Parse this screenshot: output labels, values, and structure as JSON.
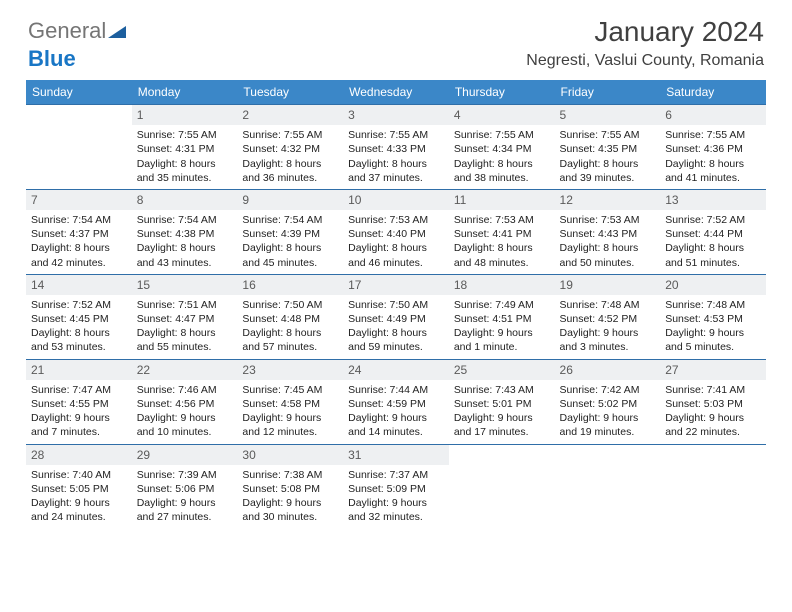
{
  "brand": {
    "part1": "General",
    "part2": "Blue",
    "color_gray": "#757575",
    "color_blue": "#1976c5",
    "triangle_color": "#1c5f9e"
  },
  "header": {
    "month_title": "January 2024",
    "location": "Negresti, Vaslui County, Romania"
  },
  "style": {
    "header_bg": "#3b87c8",
    "header_text": "#ffffff",
    "daynum_bg": "#eef0f2",
    "daynum_text": "#5a5a5a",
    "row_border": "#2f6ea8",
    "body_text": "#222222",
    "page_bg": "#ffffff",
    "title_color": "#404040",
    "body_fontsize": 10.5,
    "daynum_fontsize": 12,
    "th_fontsize": 12,
    "title_fontsize": 28,
    "location_fontsize": 16
  },
  "weekdays": [
    "Sunday",
    "Monday",
    "Tuesday",
    "Wednesday",
    "Thursday",
    "Friday",
    "Saturday"
  ],
  "weeks": [
    [
      null,
      {
        "num": "1",
        "sunrise": "Sunrise: 7:55 AM",
        "sunset": "Sunset: 4:31 PM",
        "day1": "Daylight: 8 hours",
        "day2": "and 35 minutes."
      },
      {
        "num": "2",
        "sunrise": "Sunrise: 7:55 AM",
        "sunset": "Sunset: 4:32 PM",
        "day1": "Daylight: 8 hours",
        "day2": "and 36 minutes."
      },
      {
        "num": "3",
        "sunrise": "Sunrise: 7:55 AM",
        "sunset": "Sunset: 4:33 PM",
        "day1": "Daylight: 8 hours",
        "day2": "and 37 minutes."
      },
      {
        "num": "4",
        "sunrise": "Sunrise: 7:55 AM",
        "sunset": "Sunset: 4:34 PM",
        "day1": "Daylight: 8 hours",
        "day2": "and 38 minutes."
      },
      {
        "num": "5",
        "sunrise": "Sunrise: 7:55 AM",
        "sunset": "Sunset: 4:35 PM",
        "day1": "Daylight: 8 hours",
        "day2": "and 39 minutes."
      },
      {
        "num": "6",
        "sunrise": "Sunrise: 7:55 AM",
        "sunset": "Sunset: 4:36 PM",
        "day1": "Daylight: 8 hours",
        "day2": "and 41 minutes."
      }
    ],
    [
      {
        "num": "7",
        "sunrise": "Sunrise: 7:54 AM",
        "sunset": "Sunset: 4:37 PM",
        "day1": "Daylight: 8 hours",
        "day2": "and 42 minutes."
      },
      {
        "num": "8",
        "sunrise": "Sunrise: 7:54 AM",
        "sunset": "Sunset: 4:38 PM",
        "day1": "Daylight: 8 hours",
        "day2": "and 43 minutes."
      },
      {
        "num": "9",
        "sunrise": "Sunrise: 7:54 AM",
        "sunset": "Sunset: 4:39 PM",
        "day1": "Daylight: 8 hours",
        "day2": "and 45 minutes."
      },
      {
        "num": "10",
        "sunrise": "Sunrise: 7:53 AM",
        "sunset": "Sunset: 4:40 PM",
        "day1": "Daylight: 8 hours",
        "day2": "and 46 minutes."
      },
      {
        "num": "11",
        "sunrise": "Sunrise: 7:53 AM",
        "sunset": "Sunset: 4:41 PM",
        "day1": "Daylight: 8 hours",
        "day2": "and 48 minutes."
      },
      {
        "num": "12",
        "sunrise": "Sunrise: 7:53 AM",
        "sunset": "Sunset: 4:43 PM",
        "day1": "Daylight: 8 hours",
        "day2": "and 50 minutes."
      },
      {
        "num": "13",
        "sunrise": "Sunrise: 7:52 AM",
        "sunset": "Sunset: 4:44 PM",
        "day1": "Daylight: 8 hours",
        "day2": "and 51 minutes."
      }
    ],
    [
      {
        "num": "14",
        "sunrise": "Sunrise: 7:52 AM",
        "sunset": "Sunset: 4:45 PM",
        "day1": "Daylight: 8 hours",
        "day2": "and 53 minutes."
      },
      {
        "num": "15",
        "sunrise": "Sunrise: 7:51 AM",
        "sunset": "Sunset: 4:47 PM",
        "day1": "Daylight: 8 hours",
        "day2": "and 55 minutes."
      },
      {
        "num": "16",
        "sunrise": "Sunrise: 7:50 AM",
        "sunset": "Sunset: 4:48 PM",
        "day1": "Daylight: 8 hours",
        "day2": "and 57 minutes."
      },
      {
        "num": "17",
        "sunrise": "Sunrise: 7:50 AM",
        "sunset": "Sunset: 4:49 PM",
        "day1": "Daylight: 8 hours",
        "day2": "and 59 minutes."
      },
      {
        "num": "18",
        "sunrise": "Sunrise: 7:49 AM",
        "sunset": "Sunset: 4:51 PM",
        "day1": "Daylight: 9 hours",
        "day2": "and 1 minute."
      },
      {
        "num": "19",
        "sunrise": "Sunrise: 7:48 AM",
        "sunset": "Sunset: 4:52 PM",
        "day1": "Daylight: 9 hours",
        "day2": "and 3 minutes."
      },
      {
        "num": "20",
        "sunrise": "Sunrise: 7:48 AM",
        "sunset": "Sunset: 4:53 PM",
        "day1": "Daylight: 9 hours",
        "day2": "and 5 minutes."
      }
    ],
    [
      {
        "num": "21",
        "sunrise": "Sunrise: 7:47 AM",
        "sunset": "Sunset: 4:55 PM",
        "day1": "Daylight: 9 hours",
        "day2": "and 7 minutes."
      },
      {
        "num": "22",
        "sunrise": "Sunrise: 7:46 AM",
        "sunset": "Sunset: 4:56 PM",
        "day1": "Daylight: 9 hours",
        "day2": "and 10 minutes."
      },
      {
        "num": "23",
        "sunrise": "Sunrise: 7:45 AM",
        "sunset": "Sunset: 4:58 PM",
        "day1": "Daylight: 9 hours",
        "day2": "and 12 minutes."
      },
      {
        "num": "24",
        "sunrise": "Sunrise: 7:44 AM",
        "sunset": "Sunset: 4:59 PM",
        "day1": "Daylight: 9 hours",
        "day2": "and 14 minutes."
      },
      {
        "num": "25",
        "sunrise": "Sunrise: 7:43 AM",
        "sunset": "Sunset: 5:01 PM",
        "day1": "Daylight: 9 hours",
        "day2": "and 17 minutes."
      },
      {
        "num": "26",
        "sunrise": "Sunrise: 7:42 AM",
        "sunset": "Sunset: 5:02 PM",
        "day1": "Daylight: 9 hours",
        "day2": "and 19 minutes."
      },
      {
        "num": "27",
        "sunrise": "Sunrise: 7:41 AM",
        "sunset": "Sunset: 5:03 PM",
        "day1": "Daylight: 9 hours",
        "day2": "and 22 minutes."
      }
    ],
    [
      {
        "num": "28",
        "sunrise": "Sunrise: 7:40 AM",
        "sunset": "Sunset: 5:05 PM",
        "day1": "Daylight: 9 hours",
        "day2": "and 24 minutes."
      },
      {
        "num": "29",
        "sunrise": "Sunrise: 7:39 AM",
        "sunset": "Sunset: 5:06 PM",
        "day1": "Daylight: 9 hours",
        "day2": "and 27 minutes."
      },
      {
        "num": "30",
        "sunrise": "Sunrise: 7:38 AM",
        "sunset": "Sunset: 5:08 PM",
        "day1": "Daylight: 9 hours",
        "day2": "and 30 minutes."
      },
      {
        "num": "31",
        "sunrise": "Sunrise: 7:37 AM",
        "sunset": "Sunset: 5:09 PM",
        "day1": "Daylight: 9 hours",
        "day2": "and 32 minutes."
      },
      null,
      null,
      null
    ]
  ]
}
